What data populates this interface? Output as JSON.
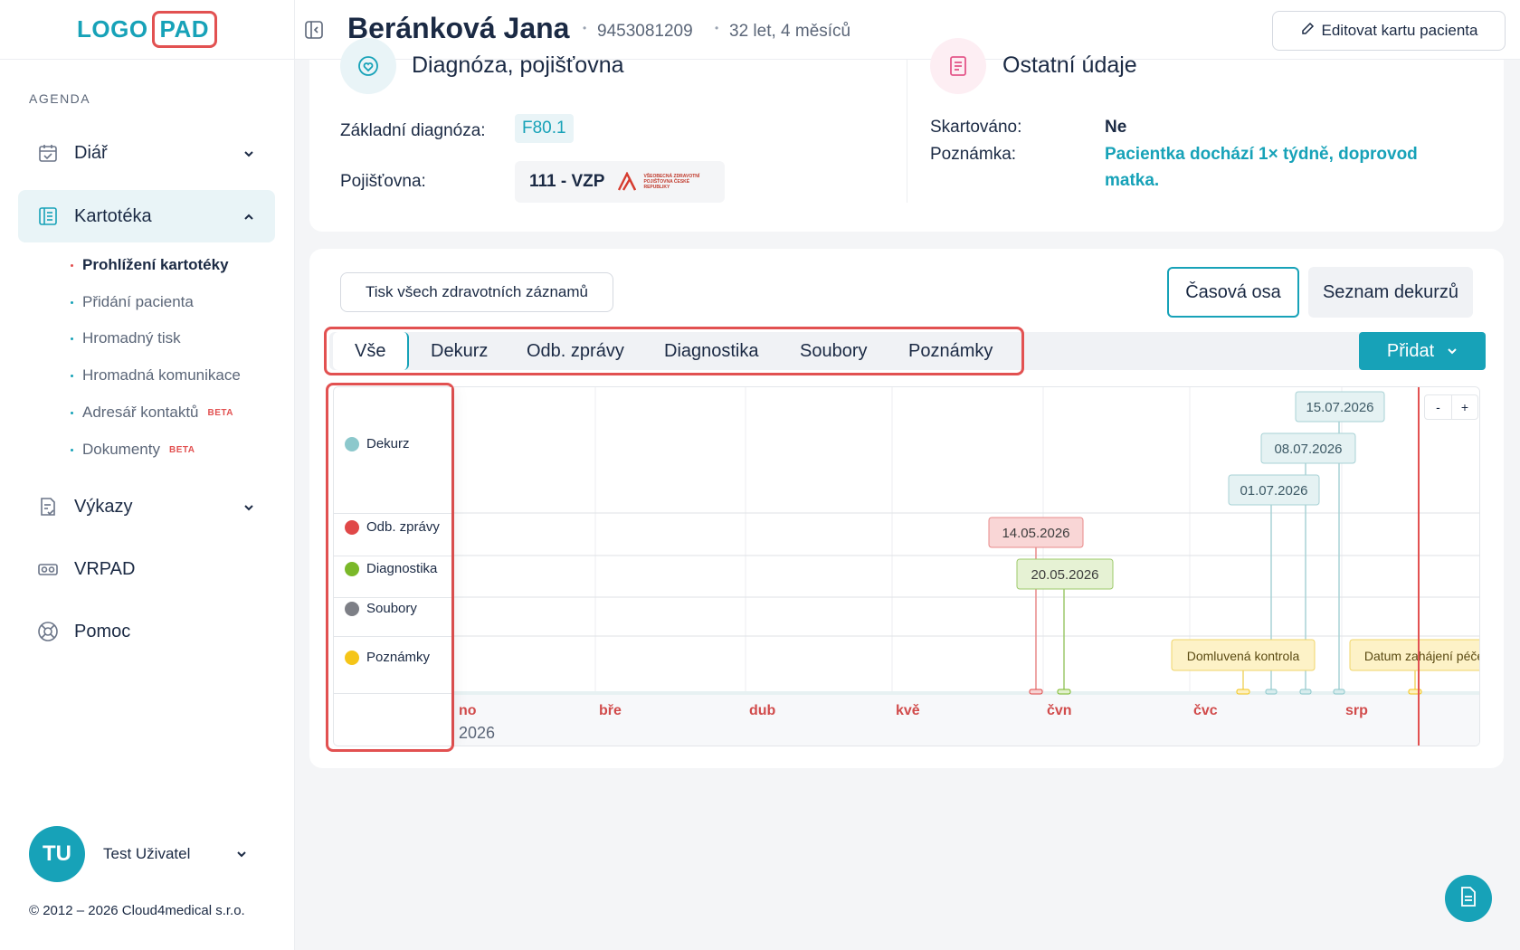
{
  "sidebar": {
    "logo_a": "LOGO",
    "logo_b": "PAD",
    "agenda_label": "AGENDA",
    "items": [
      {
        "label": "Diář",
        "icon": "calendar-icon"
      },
      {
        "label": "Kartotéka",
        "icon": "card-file-icon"
      },
      {
        "label": "Výkazy",
        "icon": "report-icon"
      },
      {
        "label": "VRPAD",
        "icon": "vr-headset-icon"
      },
      {
        "label": "Pomoc",
        "icon": "lifebuoy-icon"
      }
    ],
    "subitems": [
      {
        "label": "Prohlížení kartotéky"
      },
      {
        "label": "Přidání pacienta"
      },
      {
        "label": "Hromadný tisk"
      },
      {
        "label": "Hromadná komunikace"
      },
      {
        "label": "Adresář kontaktů",
        "badge": "BETA"
      },
      {
        "label": "Dokumenty",
        "badge": "BETA"
      }
    ],
    "user": {
      "initials": "TU",
      "name": "Test Uživatel"
    },
    "copyright": "© 2012 – 2026 Cloud4medical s.r.o."
  },
  "header": {
    "patient_name": "Beránková Jana",
    "patient_id": "9453081209",
    "age": "32 let, 4 měsíců",
    "edit_label": "Editovat kartu pacienta"
  },
  "info": {
    "diag_title": "Diagnóza, pojišťovna",
    "diag_label": "Základní diagnóza:",
    "diag_value": "F80.1",
    "ins_label": "Pojišťovna:",
    "ins_value": "111 - VZP",
    "ins_logo_text": "VŠEOBECNÁ ZDRAVOTNÍ POJIŠŤOVNA ČESKÉ REPUBLIKY",
    "other_title": "Ostatní údaje",
    "shred_label": "Skartováno:",
    "shred_value": "Ne",
    "note_label": "Poznámka:",
    "note_value": "Pacientka dochází 1× týdně, doprovod matka."
  },
  "timeline": {
    "print_label": "Tisk všech zdravotních záznamů",
    "view_timeline": "Časová osa",
    "view_list": "Seznam dekurzů",
    "tabs": [
      "Vše",
      "Dekurz",
      "Odb. zprávy",
      "Diagnostika",
      "Soubory",
      "Poznámky"
    ],
    "add_label": "Přidat",
    "zoom_out": "-",
    "zoom_in": "+",
    "legend": [
      {
        "label": "Dekurz",
        "color": "#8cc8cc"
      },
      {
        "label": "Odb. zprávy",
        "color": "#e04848"
      },
      {
        "label": "Diagnostika",
        "color": "#7ab829"
      },
      {
        "label": "Soubory",
        "color": "#7d7f86"
      },
      {
        "label": "Poznámky",
        "color": "#f5c518"
      }
    ],
    "months": [
      "no",
      "bře",
      "dub",
      "kvě",
      "čvn",
      "čvc",
      "srp"
    ],
    "year_label": "2026",
    "events": [
      {
        "label": "15.07.2026",
        "group": "Dekurz"
      },
      {
        "label": "08.07.2026",
        "group": "Dekurz"
      },
      {
        "label": "01.07.2026",
        "group": "Dekurz"
      },
      {
        "label": "14.05.2026",
        "group": "Odb. zprávy"
      },
      {
        "label": "20.05.2026",
        "group": "Diagnostika"
      },
      {
        "label": "Domluvená kontrola",
        "group": "Poznámky"
      },
      {
        "label": "Datum zahájení péče",
        "group": "Poznámky"
      }
    ]
  }
}
